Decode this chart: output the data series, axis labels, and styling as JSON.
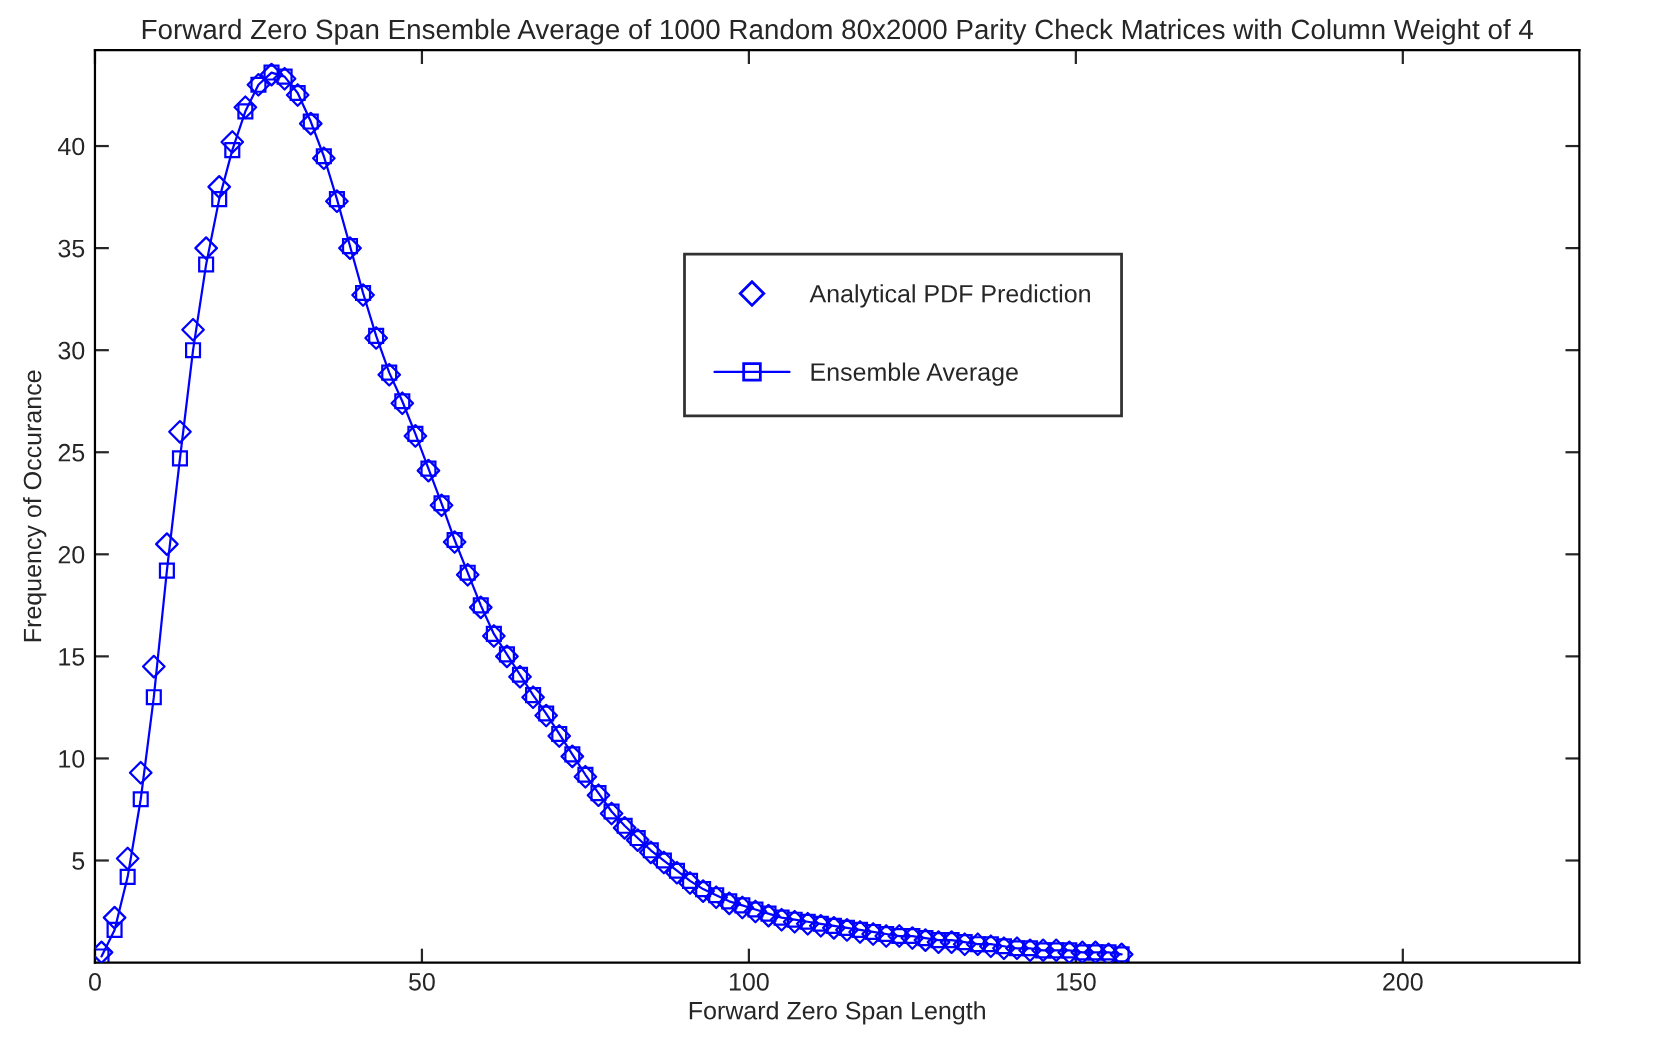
{
  "chart_data": {
    "type": "line",
    "title": "Forward Zero Span Ensemble Average of 1000 Random 80x2000 Parity Check Matrices with Column Weight of 4",
    "xlabel": "Forward Zero Span Length",
    "ylabel": "Frequency of Occurance",
    "x": [
      1,
      3,
      5,
      7,
      9,
      11,
      13,
      15,
      17,
      19,
      21,
      23,
      25,
      27,
      29,
      31,
      33,
      35,
      37,
      39,
      41,
      43,
      45,
      47,
      49,
      51,
      53,
      55,
      57,
      59,
      61,
      63,
      65,
      67,
      69,
      71,
      73,
      75,
      77,
      79,
      81,
      83,
      85,
      87,
      89,
      91,
      93,
      95,
      97,
      99,
      101,
      103,
      105,
      107,
      109,
      111,
      113,
      115,
      117,
      119,
      121,
      123,
      125,
      127,
      129,
      131,
      133,
      135,
      137,
      139,
      141,
      143,
      145,
      147,
      149,
      151,
      153,
      155,
      157
    ],
    "series": [
      {
        "name": "Analytical PDF Prediction",
        "type": "scatter",
        "marker": "diamond",
        "color": "#0000ff",
        "values": [
          0.5,
          2.2,
          5.1,
          9.3,
          14.5,
          20.5,
          26,
          31,
          35,
          38,
          40.2,
          41.9,
          43,
          43.5,
          43.3,
          42.5,
          41.1,
          39.4,
          37.3,
          35,
          32.7,
          30.6,
          28.8,
          27.4,
          25.8,
          24.1,
          22.4,
          20.6,
          19,
          17.4,
          16,
          15,
          14,
          13,
          12.1,
          11.1,
          10.1,
          9.1,
          8.2,
          7.3,
          6.6,
          6,
          5.4,
          4.9,
          4.4,
          3.9,
          3.5,
          3.2,
          2.9,
          2.7,
          2.5,
          2.3,
          2.1,
          2,
          1.9,
          1.8,
          1.7,
          1.6,
          1.5,
          1.4,
          1.3,
          1.3,
          1.2,
          1.1,
          1,
          1,
          0.9,
          0.9,
          0.8,
          0.7,
          0.7,
          0.6,
          0.6,
          0.6,
          0.5,
          0.5,
          0.5,
          0.4,
          0.4
        ]
      },
      {
        "name": "Ensemble Average",
        "marker": "square",
        "line_style": "solid",
        "color": "#0000ff",
        "values": [
          0.3,
          1.6,
          4.2,
          8,
          13,
          19.2,
          24.7,
          30,
          34.2,
          37.4,
          39.8,
          41.7,
          43,
          43.6,
          43.4,
          42.6,
          41.2,
          39.5,
          37.4,
          35.1,
          32.8,
          30.7,
          28.9,
          27.5,
          25.9,
          24.2,
          22.5,
          20.7,
          19.1,
          17.5,
          16.1,
          15.1,
          14.1,
          13.1,
          12.2,
          11.2,
          10.2,
          9.2,
          8.3,
          7.4,
          6.7,
          6.1,
          5.5,
          5,
          4.5,
          4,
          3.6,
          3.3,
          3,
          2.8,
          2.6,
          2.4,
          2.2,
          2.1,
          2,
          1.9,
          1.8,
          1.7,
          1.6,
          1.5,
          1.4,
          1.3,
          1.3,
          1.2,
          1.1,
          1.1,
          1,
          0.9,
          0.9,
          0.8,
          0.7,
          0.7,
          0.6,
          0.6,
          0.6,
          0.5,
          0.5,
          0.5,
          0.4
        ]
      }
    ],
    "xlim": [
      0,
      227
    ],
    "xticks": [
      0,
      50,
      100,
      150,
      200
    ],
    "ylim": [
      0,
      44.7
    ],
    "yticks": [
      5,
      10,
      15,
      20,
      25,
      30,
      35,
      40
    ],
    "legend": "top right"
  }
}
